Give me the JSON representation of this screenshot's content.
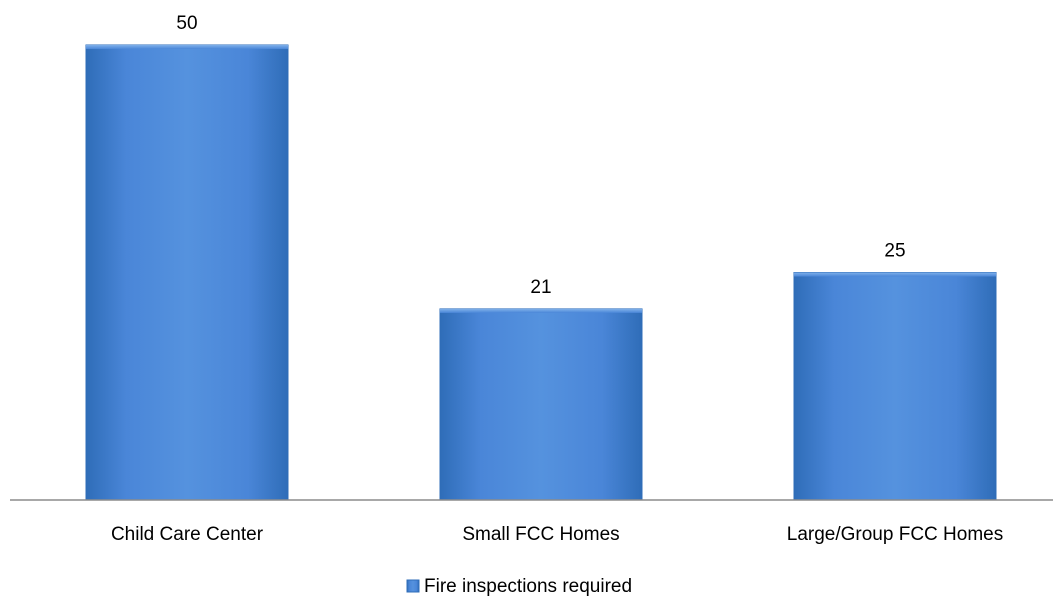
{
  "chart_data": {
    "type": "bar",
    "categories": [
      "Child Care Center",
      "Small FCC Homes",
      "Large/Group FCC Homes"
    ],
    "series": [
      {
        "name": "Fire inspections required",
        "values": [
          50,
          21,
          25
        ],
        "color": "#4a86d8"
      }
    ],
    "data_labels": [
      "50",
      "21",
      "25"
    ],
    "title": "",
    "xlabel": "",
    "ylabel": "",
    "ylim": [
      0,
      55
    ],
    "grid": false,
    "legend_position": "bottom"
  }
}
